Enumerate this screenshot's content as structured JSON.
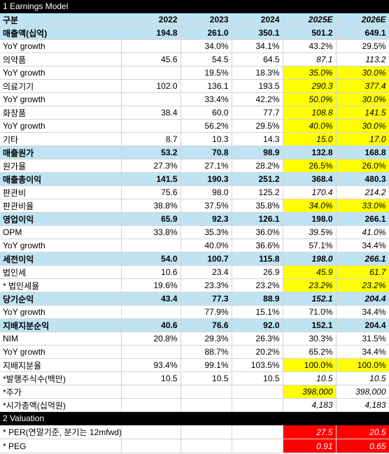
{
  "section1_title": "1 Earnings Model",
  "section2_title": "2 Valuation",
  "header": [
    "구분",
    "2022",
    "2023",
    "2024",
    "2025E",
    "2026E"
  ],
  "rows": [
    {
      "label": "매출액(십억)",
      "vals": [
        "194.8",
        "261.0",
        "350.1",
        "501.2",
        "649.1"
      ],
      "style": "major"
    },
    {
      "label": " YoY growth",
      "vals": [
        "",
        "34.0%",
        "34.1%",
        "43.2%",
        "29.5%"
      ],
      "style": "normal"
    },
    {
      "label": "의약품",
      "vals": [
        "45.6",
        "54.5",
        "64.5",
        "87.1",
        "113.2"
      ],
      "style": "normal",
      "est": true
    },
    {
      "label": "  YoY growth",
      "vals": [
        "",
        "19.5%",
        "18.3%",
        "35.0%",
        "30.0%"
      ],
      "style": "normal",
      "est": true,
      "yellow": true
    },
    {
      "label": "의료기기",
      "vals": [
        "102.0",
        "136.1",
        "193.5",
        "290.3",
        "377.4"
      ],
      "style": "normal",
      "est": true,
      "yellow": true
    },
    {
      "label": "  YoY growth",
      "vals": [
        "",
        "33.4%",
        "42.2%",
        "50.0%",
        "30.0%"
      ],
      "style": "normal",
      "est": true,
      "yellow": true
    },
    {
      "label": "화장품",
      "vals": [
        "38.4",
        "60.0",
        "77.7",
        "108.8",
        "141.5"
      ],
      "style": "normal",
      "est": true,
      "yellow": true
    },
    {
      "label": "  YoY growth",
      "vals": [
        "",
        "56.2%",
        "29.5%",
        "40.0%",
        "30.0%"
      ],
      "style": "normal",
      "est": true,
      "yellow": true
    },
    {
      "label": "기타",
      "vals": [
        "8.7",
        "10.3",
        "14.3",
        "15.0",
        "17.0"
      ],
      "style": "normal",
      "est": true,
      "yellow": true
    },
    {
      "label": "매출원가",
      "vals": [
        "53.2",
        "70.8",
        "98.9",
        "132.8",
        "168.8"
      ],
      "style": "major"
    },
    {
      "label": "  원가율",
      "vals": [
        "27.3%",
        "27.1%",
        "28.2%",
        "26.5%",
        "26.0%"
      ],
      "style": "normal",
      "yellow": true
    },
    {
      "label": "매출총이익",
      "vals": [
        "141.5",
        "190.3",
        "251.2",
        "368.4",
        "480.3"
      ],
      "style": "major"
    },
    {
      "label": "  판관비",
      "vals": [
        "75.6",
        "98.0",
        "125.2",
        "170.4",
        "214.2"
      ],
      "style": "normal",
      "est": true
    },
    {
      "label": "  판관비율",
      "vals": [
        "38.8%",
        "37.5%",
        "35.8%",
        "34.0%",
        "33.0%"
      ],
      "style": "normal",
      "est": true,
      "yellow": true
    },
    {
      "label": "영업이익",
      "vals": [
        "65.9",
        "92.3",
        "126.1",
        "198.0",
        "266.1"
      ],
      "style": "major"
    },
    {
      "label": "OPM",
      "vals": [
        "33.8%",
        "35.3%",
        "36.0%",
        "39.5%",
        "41.0%"
      ],
      "style": "normal",
      "est": true
    },
    {
      "label": " YoY growth",
      "vals": [
        "",
        "40.0%",
        "36.6%",
        "57.1%",
        "34.4%"
      ],
      "style": "normal"
    },
    {
      "label": "세전이익",
      "vals": [
        "54.0",
        "100.7",
        "115.8",
        "198.0",
        "266.1"
      ],
      "style": "major",
      "est": true
    },
    {
      "label": "  법인세",
      "vals": [
        "10.6",
        "23.4",
        "26.9",
        "45.9",
        "61.7"
      ],
      "style": "normal",
      "est": true,
      "yellow": true
    },
    {
      "label": "  * 법인세율",
      "vals": [
        "19.6%",
        "23.3%",
        "23.2%",
        "23.2%",
        "23.2%"
      ],
      "style": "normal",
      "est": true,
      "yellow": true
    },
    {
      "label": "당기순익",
      "vals": [
        "43.4",
        "77.3",
        "88.9",
        "152.1",
        "204.4"
      ],
      "style": "lightmajor",
      "est": true
    },
    {
      "label": " YoY growth",
      "vals": [
        "",
        "77.9%",
        "15.1%",
        "71.0%",
        "34.4%"
      ],
      "style": "normal"
    },
    {
      "label": "지배지분순익",
      "vals": [
        "40.6",
        "76.6",
        "92.0",
        "152.1",
        "204.4"
      ],
      "style": "major"
    },
    {
      "label": "NIM",
      "vals": [
        "20.8%",
        "29.3%",
        "26.3%",
        "30.3%",
        "31.5%"
      ],
      "style": "normal"
    },
    {
      "label": " YoY growth",
      "vals": [
        "",
        "88.7%",
        "20.2%",
        "65.2%",
        "34.4%"
      ],
      "style": "normal"
    },
    {
      "label": "  지배지분율",
      "vals": [
        "93.4%",
        "99.1%",
        "103.5%",
        "100.0%",
        "100.0%"
      ],
      "style": "normal",
      "yellow": true
    },
    {
      "label": "*발행주식수(백만)",
      "vals": [
        "10.5",
        "10.5",
        "10.5",
        "10.5",
        "10.5"
      ],
      "style": "normal",
      "est": true
    },
    {
      "label": "*주가",
      "vals": [
        "",
        "",
        "",
        "398,000",
        "398,000"
      ],
      "style": "normal",
      "est": true,
      "yellow4": true
    },
    {
      "label": "*시가총액(십억원)",
      "vals": [
        "",
        "",
        "",
        "4,183",
        "4,183"
      ],
      "style": "normal",
      "est": true
    }
  ],
  "valuation": [
    {
      "label": "  * PER(연말기준, 분기는 12mfwd)",
      "v25": "27.5",
      "v26": "20.5"
    },
    {
      "label": "  * PEG",
      "v25": "0.91",
      "v26": "0.65"
    }
  ],
  "colors": {
    "header_bg": "#bfe3f3",
    "highlight": "#ffff00",
    "red": "#ff0000",
    "section_bg": "#000000"
  }
}
